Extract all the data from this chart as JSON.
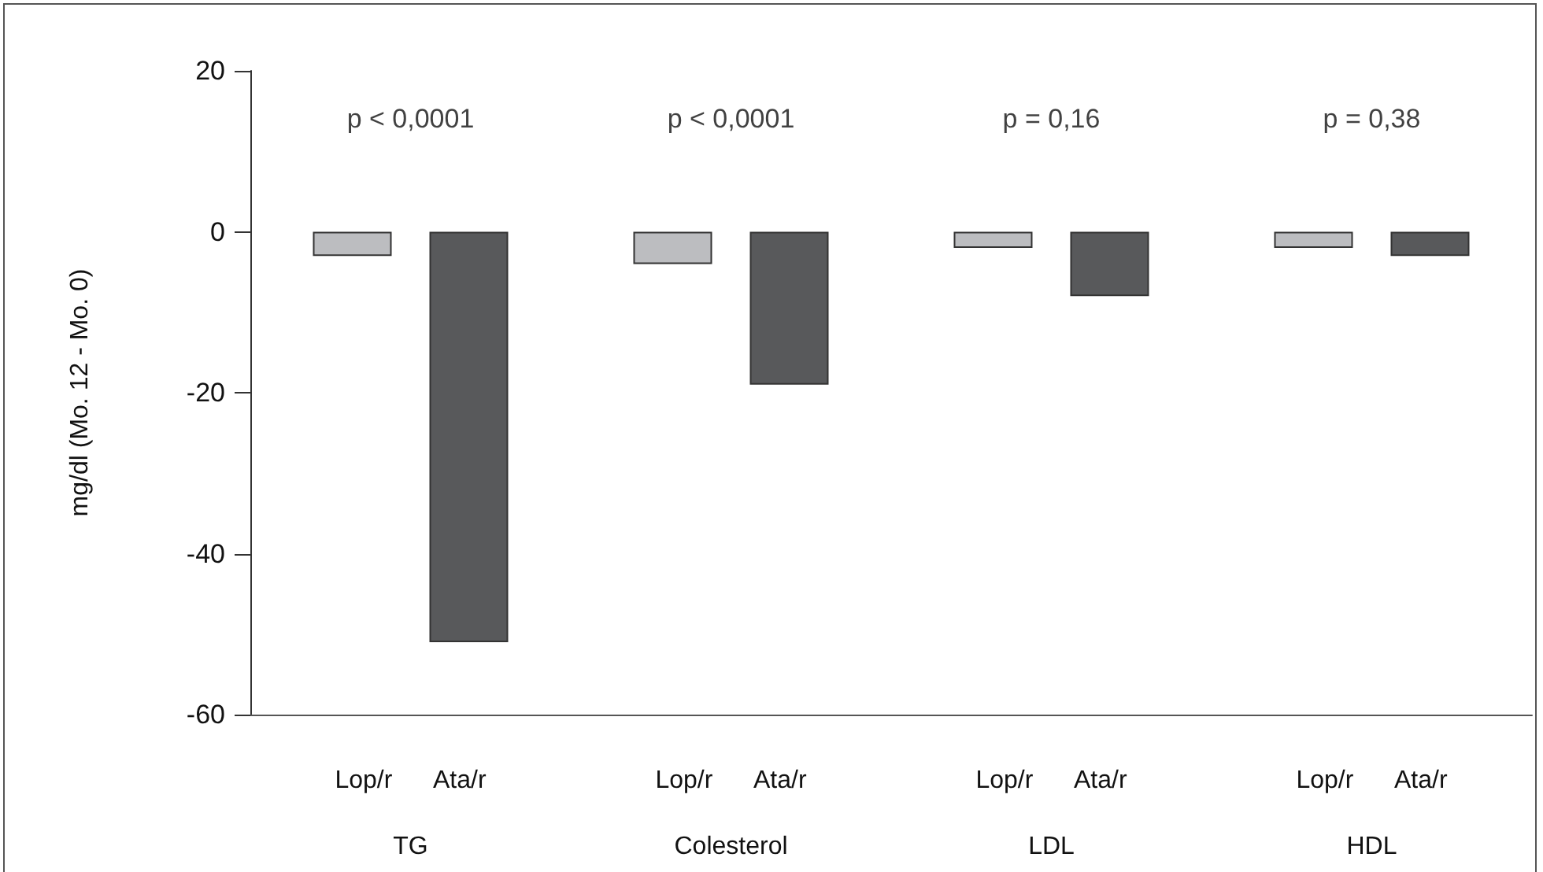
{
  "chart_data": {
    "type": "bar",
    "ylabel": "mg/dl (Mo. 12 - Mo. 0)",
    "categories": [
      "TG",
      "Colesterol",
      "LDL",
      "HDL"
    ],
    "series": [
      {
        "name": "Lop/r",
        "color": "#bcbdc0",
        "values": [
          -3,
          -4,
          -2,
          -2
        ]
      },
      {
        "name": "Ata/r",
        "color": "#58595b",
        "values": [
          -51,
          -19,
          -8,
          -3
        ]
      }
    ],
    "ylim": [
      -60,
      20
    ],
    "yticks": [
      -60,
      -40,
      -20,
      0,
      20
    ],
    "grid": false,
    "legend": false,
    "annotations": [
      "p < 0,0001",
      "p < 0,0001",
      "p = 0,16",
      "p = 0,38"
    ]
  }
}
